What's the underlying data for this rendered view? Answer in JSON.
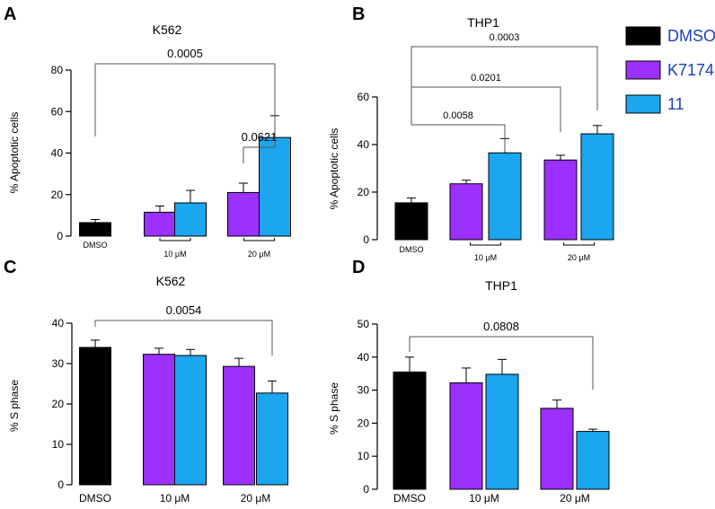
{
  "colors": {
    "DMSO": "#000000",
    "K7174": "#9b30ff",
    "11": "#1ba6ef"
  },
  "legend": [
    {
      "name": "DMSO",
      "color": "#000000"
    },
    {
      "name": "K7174",
      "color": "#9b30ff"
    },
    {
      "name": "11",
      "color": "#1ba6ef"
    }
  ],
  "chart_data": [
    {
      "panel": "A",
      "type": "bar",
      "title": "K562",
      "ylabel": "% Apoptotic cells",
      "ylim": [
        0,
        80
      ],
      "yticks": [
        0,
        20,
        40,
        60,
        80
      ],
      "group_labels": [
        "DMSO",
        "10 μM",
        "20 μM"
      ],
      "bars": [
        {
          "series": "DMSO",
          "group": 0,
          "value": 6.5,
          "err": 1.5
        },
        {
          "series": "K7174",
          "group": 1,
          "value": 11.5,
          "err": 3
        },
        {
          "series": "11",
          "group": 1,
          "value": 16,
          "err": 6
        },
        {
          "series": "K7174",
          "group": 2,
          "value": 21,
          "err": 4.5
        },
        {
          "series": "11",
          "group": 2,
          "value": 47.5,
          "err": 10.5
        }
      ],
      "comparisons": [
        {
          "from": 0,
          "to": 4,
          "label": "0.0005"
        },
        {
          "from": 3,
          "to": 4,
          "label": "0.0621"
        }
      ]
    },
    {
      "panel": "B",
      "type": "bar",
      "title": "THP1",
      "ylabel": "% Apoptotic cells",
      "ylim": [
        0,
        60
      ],
      "yticks": [
        0,
        20,
        40,
        60
      ],
      "group_labels": [
        "DMSO",
        "10 μM",
        "20 μM"
      ],
      "bars": [
        {
          "series": "DMSO",
          "group": 0,
          "value": 15.5,
          "err": 2
        },
        {
          "series": "K7174",
          "group": 1,
          "value": 23.5,
          "err": 1.5
        },
        {
          "series": "11",
          "group": 1,
          "value": 36.5,
          "err": 6
        },
        {
          "series": "K7174",
          "group": 2,
          "value": 33.5,
          "err": 2
        },
        {
          "series": "11",
          "group": 2,
          "value": 44.5,
          "err": 3.5
        }
      ],
      "comparisons": [
        {
          "from": 0,
          "to": 4,
          "label": "0.0003"
        },
        {
          "from": 0,
          "to": 3,
          "label": "0.0201"
        },
        {
          "from": 0,
          "to": 2,
          "label": "0.0058"
        }
      ]
    },
    {
      "panel": "C",
      "type": "bar",
      "title": "K562",
      "ylabel": "% S phase",
      "ylim": [
        0,
        40
      ],
      "yticks": [
        0,
        10,
        20,
        30,
        40
      ],
      "group_labels": [
        "DMSO",
        "10 μM",
        "20 μM"
      ],
      "bars": [
        {
          "series": "DMSO",
          "group": 0,
          "value": 34,
          "err": 1.8
        },
        {
          "series": "K7174",
          "group": 1,
          "value": 32.3,
          "err": 1.5
        },
        {
          "series": "11",
          "group": 1,
          "value": 32,
          "err": 1.5
        },
        {
          "series": "K7174",
          "group": 2,
          "value": 29.3,
          "err": 2
        },
        {
          "series": "11",
          "group": 2,
          "value": 22.7,
          "err": 3
        }
      ],
      "comparisons": [
        {
          "from": 0,
          "to": 4,
          "label": "0.0054"
        }
      ]
    },
    {
      "panel": "D",
      "type": "bar",
      "title": "THP1",
      "ylabel": "% S phase",
      "ylim": [
        0,
        50
      ],
      "yticks": [
        0,
        10,
        20,
        30,
        40,
        50
      ],
      "group_labels": [
        "DMSO",
        "10 μM",
        "20 μM"
      ],
      "bars": [
        {
          "series": "DMSO",
          "group": 0,
          "value": 35.5,
          "err": 4.5
        },
        {
          "series": "K7174",
          "group": 1,
          "value": 32.2,
          "err": 4.5
        },
        {
          "series": "11",
          "group": 1,
          "value": 34.8,
          "err": 4.5
        },
        {
          "series": "K7174",
          "group": 2,
          "value": 24.5,
          "err": 2.5
        },
        {
          "series": "11",
          "group": 2,
          "value": 17.5,
          "err": 0.7
        }
      ],
      "comparisons": [
        {
          "from": 0,
          "to": 4,
          "label": "0.0808"
        }
      ]
    }
  ]
}
